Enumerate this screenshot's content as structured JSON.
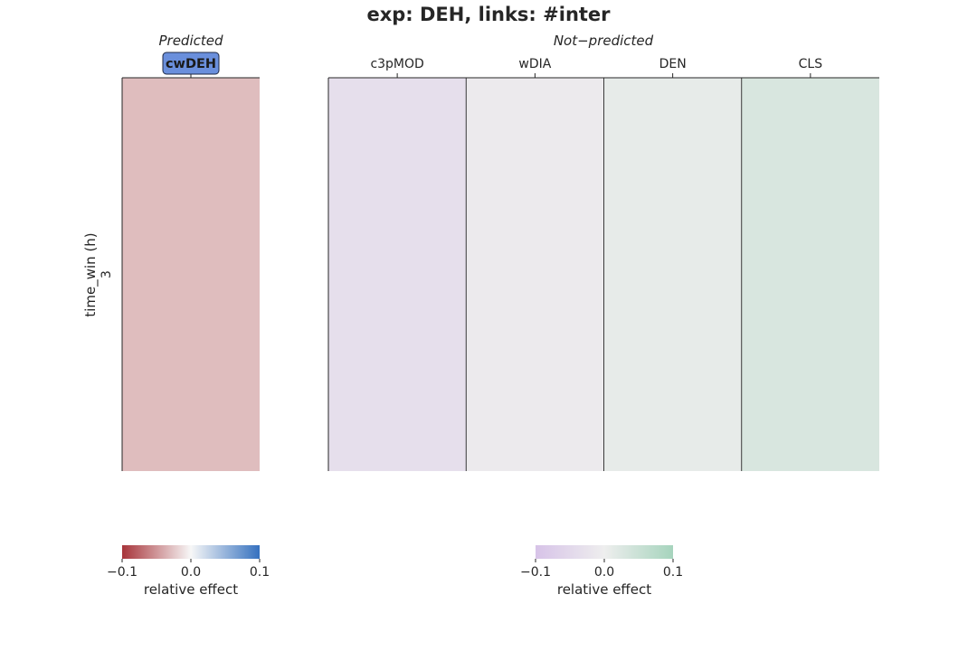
{
  "title": "exp: DEH, links: #inter",
  "ylabel": "time_win (h)",
  "colors": {
    "highlight_box": "#6a8fdc",
    "grid_line": "#262626",
    "predicted_cmap": [
      "#a7343a",
      "#f7f7f7",
      "#3571bf"
    ],
    "not_predicted_cmap": [
      "#d7c3e8",
      "#eeeeee",
      "#a6d4bd"
    ]
  },
  "chart_data": [
    {
      "type": "heatmap",
      "title": "Predicted",
      "columns": [
        "cwDEH"
      ],
      "highlighted_columns": [
        "cwDEH"
      ],
      "rows": [
        "3"
      ],
      "values": [
        [
          -0.03
        ]
      ],
      "colorbar": {
        "label": "relative effect",
        "range": [
          -0.1,
          0.1
        ],
        "ticks": [
          "−0.1",
          "0.0",
          "0.1"
        ]
      }
    },
    {
      "type": "heatmap",
      "title": "Not−predicted",
      "columns": [
        "c3pMOD",
        "wDIA",
        "DEN",
        "CLS"
      ],
      "rows": [
        "3"
      ],
      "values": [
        [
          -0.035,
          -0.01,
          0.01,
          0.03
        ]
      ],
      "colorbar": {
        "label": "relative effect",
        "range": [
          -0.1,
          0.1
        ],
        "ticks": [
          "−0.1",
          "0.0",
          "0.1"
        ]
      }
    }
  ]
}
